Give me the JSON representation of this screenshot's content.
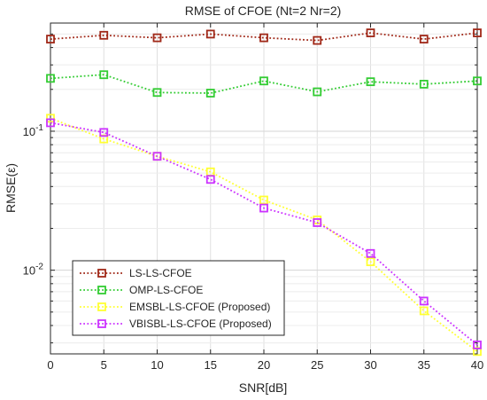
{
  "chart_data": {
    "type": "line",
    "title": "RMSE of CFOE (Nt=2 Nr=2)",
    "xlabel": "SNR[dB]",
    "ylabel": "RMSE(ε)",
    "yscale": "log",
    "xlim": [
      0,
      40
    ],
    "ylim": [
      0.0025,
      0.6
    ],
    "grid": true,
    "legend_position": "bottom-left",
    "x": [
      0,
      5,
      10,
      15,
      20,
      25,
      30,
      35,
      40
    ],
    "x_ticks": [
      0,
      5,
      10,
      15,
      20,
      25,
      30,
      35,
      40
    ],
    "x_tick_labels": [
      "0",
      "5",
      "10",
      "15",
      "20",
      "25",
      "30",
      "35",
      "40"
    ],
    "y_ticks": [
      {
        "value": 0.1,
        "base": "10",
        "exp": "-1"
      },
      {
        "value": 0.01,
        "base": "10",
        "exp": "-2"
      }
    ],
    "series": [
      {
        "name": "LS-LS-CFOE",
        "color": "#a02818",
        "values": [
          0.46,
          0.49,
          0.47,
          0.5,
          0.47,
          0.45,
          0.51,
          0.46,
          0.51
        ]
      },
      {
        "name": "OMP-LS-CFOE",
        "color": "#33cc33",
        "values": [
          0.24,
          0.255,
          0.19,
          0.188,
          0.23,
          0.192,
          0.227,
          0.218,
          0.23
        ]
      },
      {
        "name": "EMSBL-LS-CFOE (Proposed)",
        "color": "#ffff33",
        "values": [
          0.124,
          0.088,
          0.066,
          0.051,
          0.032,
          0.023,
          0.0115,
          0.0051,
          0.0026
        ]
      },
      {
        "name": "VBISBL-LS-CFOE (Proposed)",
        "color": "#cc33ff",
        "values": [
          0.115,
          0.098,
          0.066,
          0.045,
          0.028,
          0.022,
          0.0132,
          0.006,
          0.0029
        ]
      }
    ]
  }
}
